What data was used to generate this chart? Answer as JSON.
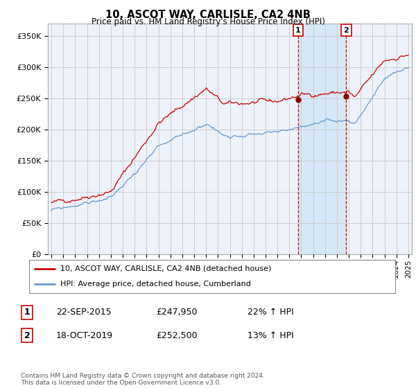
{
  "title": "10, ASCOT WAY, CARLISLE, CA2 4NB",
  "subtitle": "Price paid vs. HM Land Registry's House Price Index (HPI)",
  "ylabel_ticks": [
    "£0",
    "£50K",
    "£100K",
    "£150K",
    "£200K",
    "£250K",
    "£300K",
    "£350K"
  ],
  "ytick_values": [
    0,
    50000,
    100000,
    150000,
    200000,
    250000,
    300000,
    350000
  ],
  "ylim": [
    0,
    370000
  ],
  "xlim": [
    1994.7,
    2025.3
  ],
  "sale1_x": 2015.73,
  "sale1_y": 247950,
  "sale2_x": 2019.79,
  "sale2_y": 252500,
  "legend_line1": "10, ASCOT WAY, CARLISLE, CA2 4NB (detached house)",
  "legend_line2": "HPI: Average price, detached house, Cumberland",
  "table_row1": [
    "1",
    "22-SEP-2015",
    "£247,950",
    "22% ↑ HPI"
  ],
  "table_row2": [
    "2",
    "18-OCT-2019",
    "£252,500",
    "13% ↑ HPI"
  ],
  "footer": "Contains HM Land Registry data © Crown copyright and database right 2024.\nThis data is licensed under the Open Government Licence v3.0.",
  "line_color_red": "#cc0000",
  "line_color_blue": "#6699cc",
  "grid_color": "#cccccc",
  "background_color": "#ffffff",
  "plot_bg_color": "#eef2fb",
  "shade_color": "#d6e8f7",
  "vline_color": "#cc0000"
}
